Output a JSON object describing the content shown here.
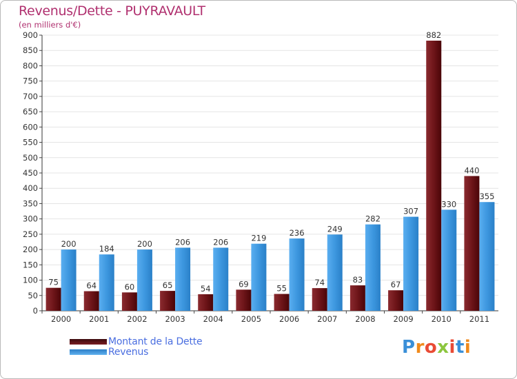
{
  "chart_data": {
    "type": "bar",
    "title": "Revenus/Dette - PUYRAVAULT",
    "subtitle": "(en milliers d'€)",
    "xlabel": "",
    "ylabel": "",
    "ylim": [
      0,
      900
    ],
    "yticks": [
      0,
      50,
      100,
      150,
      200,
      250,
      300,
      350,
      400,
      450,
      500,
      550,
      600,
      650,
      700,
      750,
      800,
      850,
      900
    ],
    "categories": [
      "2000",
      "2001",
      "2002",
      "2003",
      "2004",
      "2005",
      "2006",
      "2007",
      "2008",
      "2009",
      "2010",
      "2011"
    ],
    "series": [
      {
        "name": "Montant de la Dette",
        "color": "#7a1d22",
        "values": [
          75,
          64,
          60,
          65,
          54,
          69,
          55,
          74,
          83,
          67,
          882,
          440
        ]
      },
      {
        "name": "Revenus",
        "color": "#3b95dc",
        "values": [
          200,
          184,
          200,
          206,
          206,
          219,
          236,
          249,
          282,
          307,
          330,
          355
        ]
      }
    ],
    "legend_position": "bottom-left"
  },
  "logo": {
    "letters": [
      "P",
      "r",
      "o",
      "x",
      "i",
      "t",
      "i"
    ],
    "colors": [
      "#3a8fd8",
      "#f08a1c",
      "#e94b35",
      "#8cc63f",
      "#e94b35",
      "#3a8fd8",
      "#f08a1c"
    ]
  }
}
